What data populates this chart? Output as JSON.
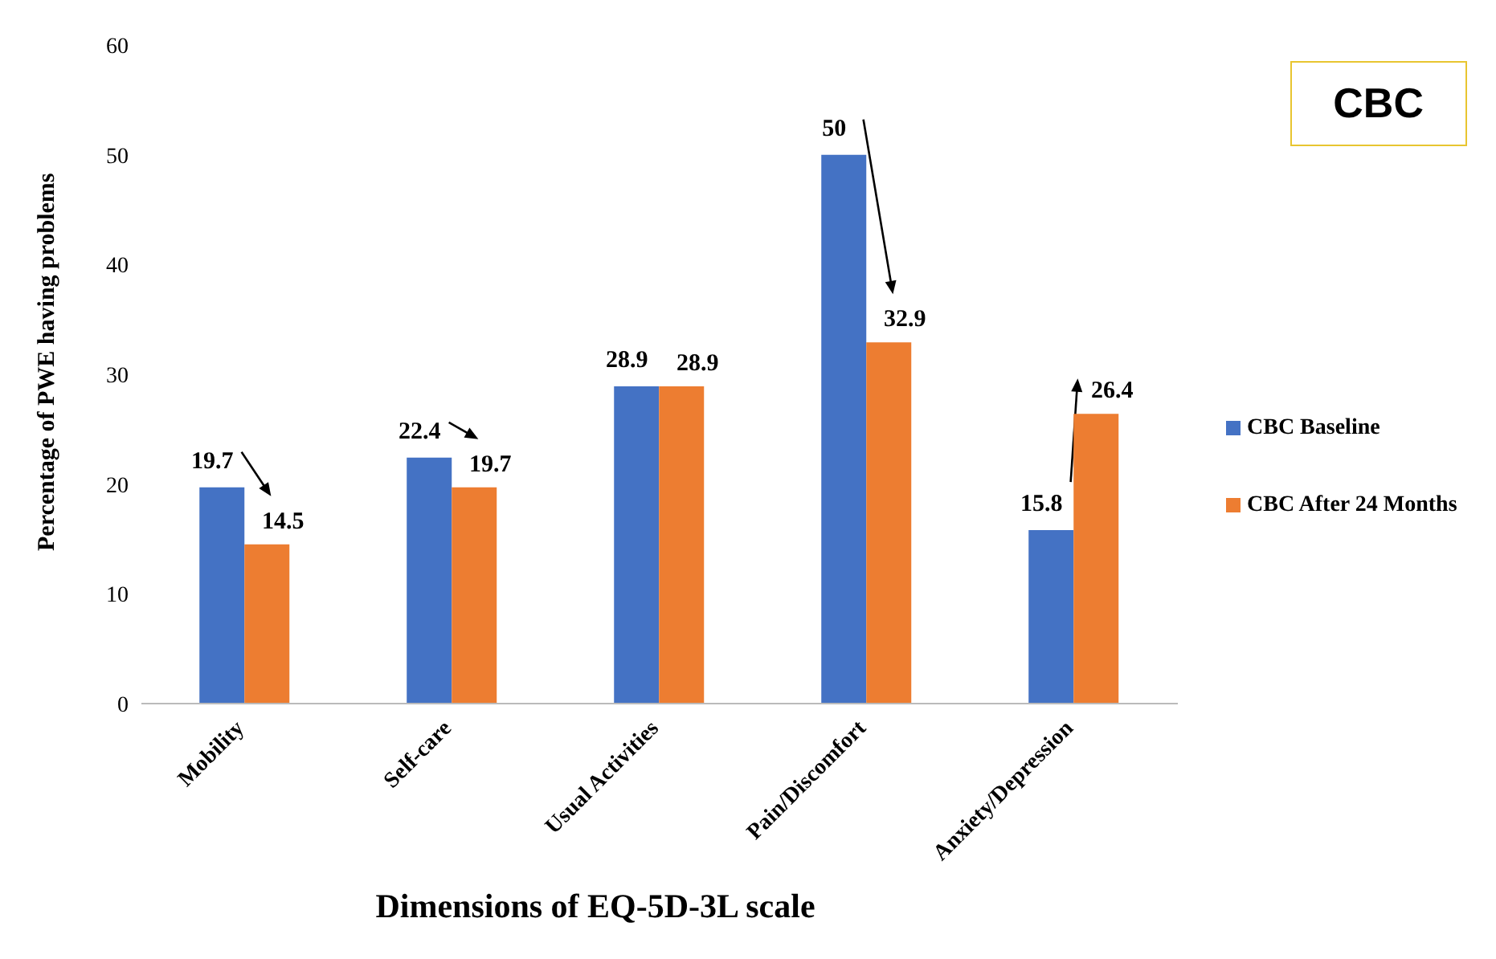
{
  "chart_data": {
    "type": "bar",
    "title": "CBC",
    "xlabel": "Dimensions of EQ-5D-3L scale",
    "ylabel": "Percentage of PWE having problems",
    "categories": [
      "Mobility",
      "Self-care",
      "Usual Activities",
      "Pain/Discomfort",
      "Anxiety/Depression"
    ],
    "series": [
      {
        "name": "CBC Baseline",
        "color": "#4472c4",
        "values": [
          19.7,
          22.4,
          28.9,
          50,
          15.8
        ]
      },
      {
        "name": "CBC After 24 Months",
        "color": "#ed7d31",
        "values": [
          14.5,
          19.7,
          28.9,
          32.9,
          26.4
        ]
      }
    ],
    "ylim": [
      0,
      60
    ],
    "yticks": [
      0,
      10,
      20,
      30,
      40,
      50,
      60
    ],
    "data_labels": true,
    "grid": false,
    "legend": "right"
  }
}
